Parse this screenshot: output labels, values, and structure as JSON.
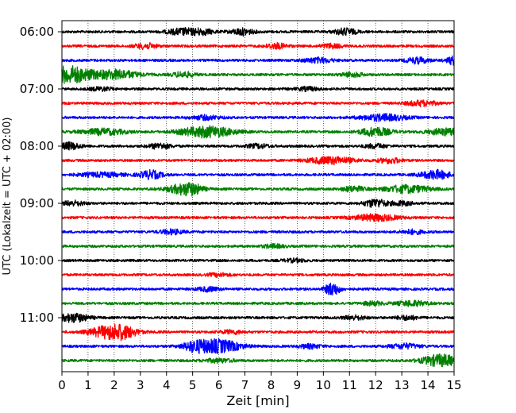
{
  "chart_data": {
    "type": "line",
    "title": "",
    "xlabel": "Zeit  [min]",
    "ylabel": "UTC (Lokalzeit = UTC + 02:00)",
    "xlim": [
      0,
      15
    ],
    "x_ticks": [
      0,
      1,
      2,
      3,
      4,
      5,
      6,
      7,
      8,
      9,
      10,
      11,
      12,
      13,
      14,
      15
    ],
    "x_tick_labels": [
      "0",
      "1",
      "2",
      "3",
      "4",
      "5",
      "6",
      "7",
      "8",
      "9",
      "10",
      "11",
      "12",
      "13",
      "14",
      "15"
    ],
    "y_tick_labels": [
      "06:00",
      "07:00",
      "08:00",
      "09:00",
      "10:00",
      "11:00"
    ],
    "y_tick_trace_index": [
      0,
      4,
      8,
      12,
      16,
      20
    ],
    "trace_interval_minutes": 15,
    "vertical_grid": "dotted",
    "colors": [
      "#000000",
      "#ff0000",
      "#0000ff",
      "#008000"
    ],
    "traces": [
      {
        "start": "06:00",
        "color": "#000000",
        "events": [
          [
            4.6,
            0.55,
            0.4
          ],
          [
            5.4,
            0.45,
            0.3
          ],
          [
            6.9,
            0.55,
            0.3
          ],
          [
            10.85,
            0.55,
            0.3
          ]
        ]
      },
      {
        "start": "06:15",
        "color": "#ff0000",
        "events": [
          [
            3.2,
            0.45,
            0.3
          ],
          [
            8.2,
            0.45,
            0.3
          ],
          [
            10.3,
            0.35,
            0.3
          ]
        ]
      },
      {
        "start": "06:30",
        "color": "#0000ff",
        "events": [
          [
            9.8,
            0.4,
            0.4
          ],
          [
            13.6,
            0.5,
            0.3
          ],
          [
            15.0,
            0.7,
            0.2
          ]
        ]
      },
      {
        "start": "06:45",
        "color": "#008000",
        "events": [
          [
            0.25,
            1.5,
            0.6
          ],
          [
            2.05,
            0.8,
            0.6
          ],
          [
            4.65,
            0.45,
            0.3
          ],
          [
            11.1,
            0.35,
            0.3
          ]
        ]
      },
      {
        "start": "07:00",
        "color": "#000000",
        "events": [
          [
            1.5,
            0.3,
            0.3
          ],
          [
            9.4,
            0.3,
            0.3
          ]
        ]
      },
      {
        "start": "07:15",
        "color": "#ff0000",
        "events": [
          [
            13.75,
            0.45,
            0.4
          ]
        ]
      },
      {
        "start": "07:30",
        "color": "#0000ff",
        "events": [
          [
            12.3,
            0.55,
            0.6
          ],
          [
            5.5,
            0.35,
            0.4
          ]
        ]
      },
      {
        "start": "07:45",
        "color": "#008000",
        "events": [
          [
            1.6,
            0.5,
            0.6
          ],
          [
            5.55,
            0.95,
            0.7
          ],
          [
            12.0,
            0.75,
            0.4
          ],
          [
            14.7,
            0.55,
            0.5
          ]
        ]
      },
      {
        "start": "08:00",
        "color": "#000000",
        "events": [
          [
            0.3,
            0.6,
            0.3
          ],
          [
            3.75,
            0.45,
            0.3
          ],
          [
            7.5,
            0.35,
            0.3
          ],
          [
            12.0,
            0.35,
            0.3
          ]
        ]
      },
      {
        "start": "08:15",
        "color": "#ff0000",
        "events": [
          [
            10.3,
            0.6,
            0.6
          ],
          [
            12.55,
            0.45,
            0.3
          ]
        ]
      },
      {
        "start": "08:30",
        "color": "#0000ff",
        "events": [
          [
            1.5,
            0.35,
            0.6
          ],
          [
            3.4,
            0.7,
            0.3
          ],
          [
            14.3,
            0.75,
            0.4
          ]
        ]
      },
      {
        "start": "08:45",
        "color": "#008000",
        "events": [
          [
            4.55,
            0.7,
            0.4
          ],
          [
            5.0,
            0.7,
            0.3
          ],
          [
            11.15,
            0.45,
            0.3
          ],
          [
            13.2,
            0.65,
            0.6
          ]
        ]
      },
      {
        "start": "09:00",
        "color": "#000000",
        "events": [
          [
            0.45,
            0.4,
            0.3
          ],
          [
            12.0,
            0.7,
            0.3
          ],
          [
            13.0,
            0.35,
            0.3
          ]
        ]
      },
      {
        "start": "09:15",
        "color": "#ff0000",
        "events": [
          [
            12.0,
            0.55,
            0.6
          ]
        ]
      },
      {
        "start": "09:30",
        "color": "#0000ff",
        "events": [
          [
            4.2,
            0.4,
            0.3
          ],
          [
            13.4,
            0.35,
            0.3
          ]
        ]
      },
      {
        "start": "09:45",
        "color": "#008000",
        "events": [
          [
            8.1,
            0.3,
            0.3
          ]
        ]
      },
      {
        "start": "10:00",
        "color": "#000000",
        "events": [
          [
            8.9,
            0.25,
            0.3
          ]
        ]
      },
      {
        "start": "10:15",
        "color": "#ff0000",
        "events": [
          [
            6.0,
            0.25,
            0.3
          ]
        ]
      },
      {
        "start": "10:30",
        "color": "#0000ff",
        "events": [
          [
            10.35,
            1.1,
            0.2
          ],
          [
            5.6,
            0.35,
            0.3
          ]
        ]
      },
      {
        "start": "10:45",
        "color": "#008000",
        "events": [
          [
            13.4,
            0.45,
            0.4
          ],
          [
            11.9,
            0.3,
            0.3
          ]
        ]
      },
      {
        "start": "11:00",
        "color": "#000000",
        "events": [
          [
            0.45,
            0.75,
            0.4
          ],
          [
            11.2,
            0.35,
            0.3
          ],
          [
            13.2,
            0.35,
            0.3
          ]
        ]
      },
      {
        "start": "11:15",
        "color": "#ff0000",
        "events": [
          [
            1.75,
            0.95,
            0.5
          ],
          [
            2.35,
            0.8,
            0.4
          ],
          [
            6.5,
            0.3,
            0.3
          ]
        ]
      },
      {
        "start": "11:30",
        "color": "#0000ff",
        "events": [
          [
            5.05,
            0.7,
            0.3
          ],
          [
            5.95,
            1.15,
            0.6
          ],
          [
            9.5,
            0.35,
            0.3
          ],
          [
            13.1,
            0.4,
            0.4
          ]
        ]
      },
      {
        "start": "11:45",
        "color": "#008000",
        "events": [
          [
            14.5,
            1.0,
            0.5
          ],
          [
            6.0,
            0.3,
            0.4
          ]
        ]
      }
    ]
  }
}
